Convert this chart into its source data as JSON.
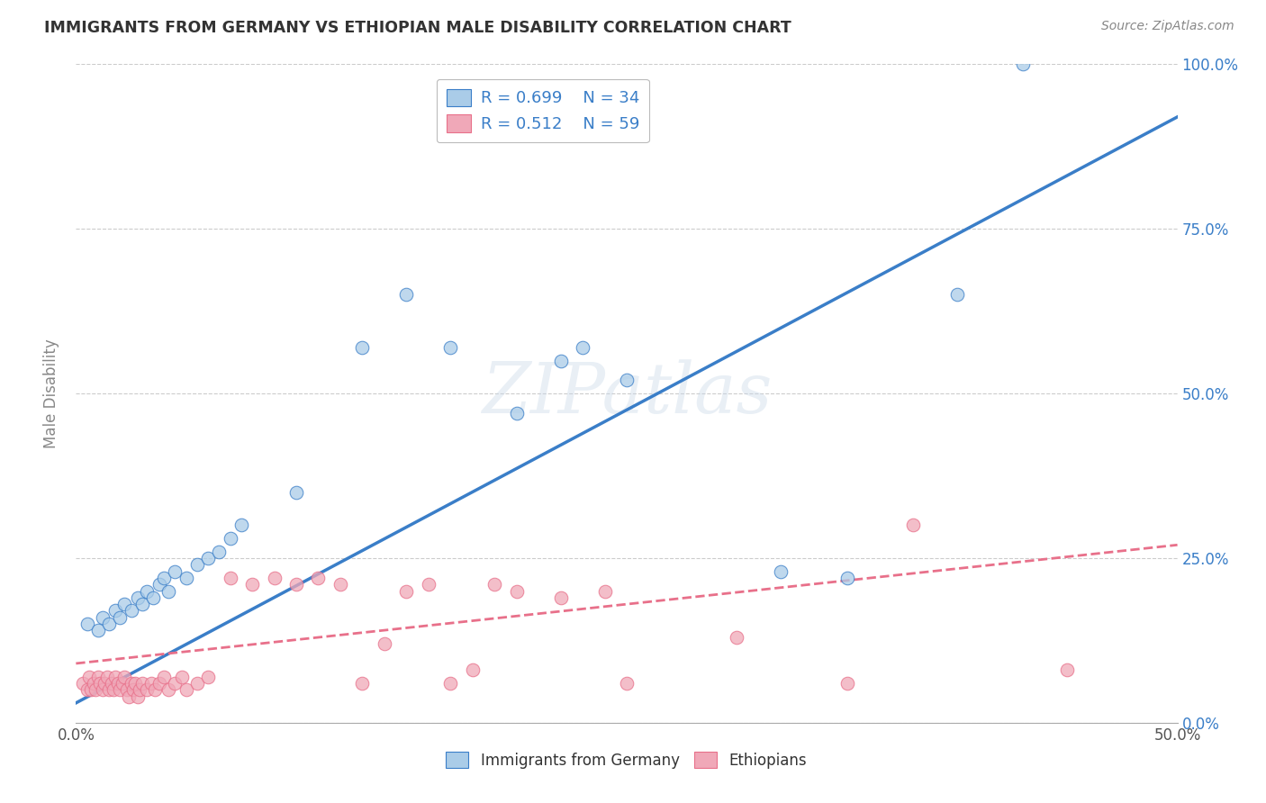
{
  "title": "IMMIGRANTS FROM GERMANY VS ETHIOPIAN MALE DISABILITY CORRELATION CHART",
  "source": "Source: ZipAtlas.com",
  "ylabel": "Male Disability",
  "x_range": [
    0.0,
    0.5
  ],
  "y_range": [
    0.0,
    1.0
  ],
  "blue_R": 0.699,
  "blue_N": 34,
  "pink_R": 0.512,
  "pink_N": 59,
  "blue_scatter": [
    [
      0.005,
      0.15
    ],
    [
      0.01,
      0.14
    ],
    [
      0.012,
      0.16
    ],
    [
      0.015,
      0.15
    ],
    [
      0.018,
      0.17
    ],
    [
      0.02,
      0.16
    ],
    [
      0.022,
      0.18
    ],
    [
      0.025,
      0.17
    ],
    [
      0.028,
      0.19
    ],
    [
      0.03,
      0.18
    ],
    [
      0.032,
      0.2
    ],
    [
      0.035,
      0.19
    ],
    [
      0.038,
      0.21
    ],
    [
      0.04,
      0.22
    ],
    [
      0.042,
      0.2
    ],
    [
      0.045,
      0.23
    ],
    [
      0.05,
      0.22
    ],
    [
      0.055,
      0.24
    ],
    [
      0.06,
      0.25
    ],
    [
      0.065,
      0.26
    ],
    [
      0.07,
      0.28
    ],
    [
      0.075,
      0.3
    ],
    [
      0.1,
      0.35
    ],
    [
      0.13,
      0.57
    ],
    [
      0.15,
      0.65
    ],
    [
      0.17,
      0.57
    ],
    [
      0.2,
      0.47
    ],
    [
      0.22,
      0.55
    ],
    [
      0.23,
      0.57
    ],
    [
      0.25,
      0.52
    ],
    [
      0.32,
      0.23
    ],
    [
      0.35,
      0.22
    ],
    [
      0.4,
      0.65
    ],
    [
      0.43,
      1.0
    ]
  ],
  "pink_scatter": [
    [
      0.003,
      0.06
    ],
    [
      0.005,
      0.05
    ],
    [
      0.006,
      0.07
    ],
    [
      0.007,
      0.05
    ],
    [
      0.008,
      0.06
    ],
    [
      0.009,
      0.05
    ],
    [
      0.01,
      0.07
    ],
    [
      0.011,
      0.06
    ],
    [
      0.012,
      0.05
    ],
    [
      0.013,
      0.06
    ],
    [
      0.014,
      0.07
    ],
    [
      0.015,
      0.05
    ],
    [
      0.016,
      0.06
    ],
    [
      0.017,
      0.05
    ],
    [
      0.018,
      0.07
    ],
    [
      0.019,
      0.06
    ],
    [
      0.02,
      0.05
    ],
    [
      0.021,
      0.06
    ],
    [
      0.022,
      0.07
    ],
    [
      0.023,
      0.05
    ],
    [
      0.024,
      0.04
    ],
    [
      0.025,
      0.06
    ],
    [
      0.026,
      0.05
    ],
    [
      0.027,
      0.06
    ],
    [
      0.028,
      0.04
    ],
    [
      0.029,
      0.05
    ],
    [
      0.03,
      0.06
    ],
    [
      0.032,
      0.05
    ],
    [
      0.034,
      0.06
    ],
    [
      0.036,
      0.05
    ],
    [
      0.038,
      0.06
    ],
    [
      0.04,
      0.07
    ],
    [
      0.042,
      0.05
    ],
    [
      0.045,
      0.06
    ],
    [
      0.048,
      0.07
    ],
    [
      0.05,
      0.05
    ],
    [
      0.055,
      0.06
    ],
    [
      0.06,
      0.07
    ],
    [
      0.07,
      0.22
    ],
    [
      0.08,
      0.21
    ],
    [
      0.09,
      0.22
    ],
    [
      0.1,
      0.21
    ],
    [
      0.11,
      0.22
    ],
    [
      0.12,
      0.21
    ],
    [
      0.13,
      0.06
    ],
    [
      0.14,
      0.12
    ],
    [
      0.15,
      0.2
    ],
    [
      0.16,
      0.21
    ],
    [
      0.17,
      0.06
    ],
    [
      0.18,
      0.08
    ],
    [
      0.19,
      0.21
    ],
    [
      0.2,
      0.2
    ],
    [
      0.22,
      0.19
    ],
    [
      0.24,
      0.2
    ],
    [
      0.25,
      0.06
    ],
    [
      0.3,
      0.13
    ],
    [
      0.35,
      0.06
    ],
    [
      0.38,
      0.3
    ],
    [
      0.45,
      0.08
    ]
  ],
  "blue_line_color": "#3A7EC8",
  "pink_line_color": "#E8708A",
  "blue_scatter_color": "#AACCE8",
  "pink_scatter_color": "#F0A8B8",
  "grid_color": "#CCCCCC",
  "watermark": "ZIPatlas",
  "background_color": "#FFFFFF",
  "title_color": "#333333"
}
